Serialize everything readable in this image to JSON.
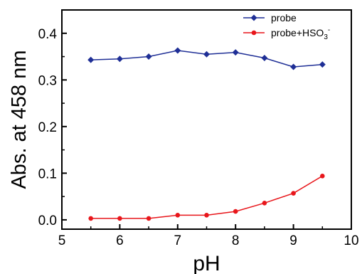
{
  "chart_data": {
    "type": "line",
    "xlabel": "pH",
    "ylabel": "Abs. at 458 nm",
    "xlim": [
      5,
      10
    ],
    "ylim": [
      -0.02,
      0.45
    ],
    "xticks": [
      5,
      6,
      7,
      8,
      9,
      10
    ],
    "yticks": [
      0.0,
      0.1,
      0.2,
      0.3,
      0.4
    ],
    "ytick_labels": [
      "0.0",
      "0.1",
      "0.2",
      "0.3",
      "0.4"
    ],
    "grid": false,
    "legend_position": "top-right",
    "series": [
      {
        "name": "probe",
        "color": "#1f2f96",
        "marker": "diamond",
        "x": [
          5.5,
          6.0,
          6.5,
          7.0,
          7.5,
          8.0,
          8.5,
          9.0,
          9.5
        ],
        "y": [
          0.343,
          0.345,
          0.35,
          0.363,
          0.355,
          0.359,
          0.347,
          0.328,
          0.333
        ]
      },
      {
        "name": "probe+HSO",
        "name_subscript": "3",
        "name_superscript": "-",
        "color": "#e8161b",
        "marker": "circle",
        "x": [
          5.5,
          6.0,
          6.5,
          7.0,
          7.5,
          8.0,
          8.5,
          9.0,
          9.5
        ],
        "y": [
          0.003,
          0.003,
          0.003,
          0.01,
          0.01,
          0.018,
          0.036,
          0.057,
          0.094
        ]
      }
    ]
  }
}
